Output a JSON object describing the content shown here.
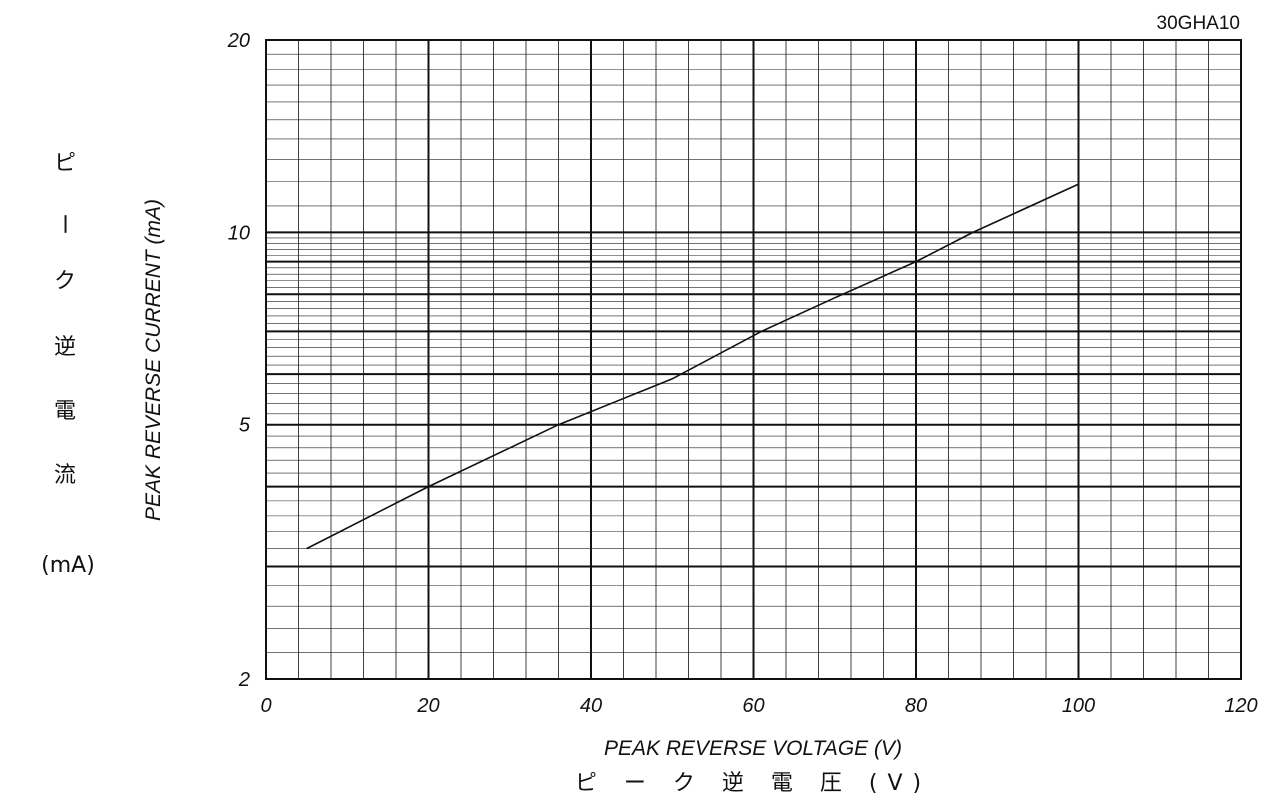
{
  "chart_data": {
    "type": "line",
    "model_label": "30GHA10",
    "xlabel": "PEAK REVERSE VOLTAGE (V)",
    "xlabel_jp": "ピ ー ク 逆 電 圧 (V)",
    "ylabel": "PEAK REVERSE CURRENT (mA)",
    "ylabel_jp": [
      "ピ",
      "ー",
      "ク",
      "逆",
      "電",
      "流"
    ],
    "ylabel_jp_unit": "(mA)",
    "xlim": [
      0,
      120
    ],
    "ylim": [
      2,
      20
    ],
    "yscale": "log",
    "x_ticks": [
      0,
      20,
      40,
      60,
      80,
      100,
      120
    ],
    "x_tick_labels": [
      "0",
      "20",
      "40",
      "60",
      "80",
      "100",
      "120"
    ],
    "y_ticks": [
      2,
      5,
      10,
      20
    ],
    "y_tick_labels": [
      "2",
      "5",
      "10",
      "20"
    ],
    "grid": true,
    "series": [
      {
        "x": [
          5,
          20,
          36,
          50,
          61,
          70,
          80,
          87,
          100
        ],
        "y": [
          3.2,
          4.0,
          5.0,
          5.9,
          7.0,
          7.9,
          9.0,
          10.0,
          11.9
        ]
      }
    ]
  }
}
